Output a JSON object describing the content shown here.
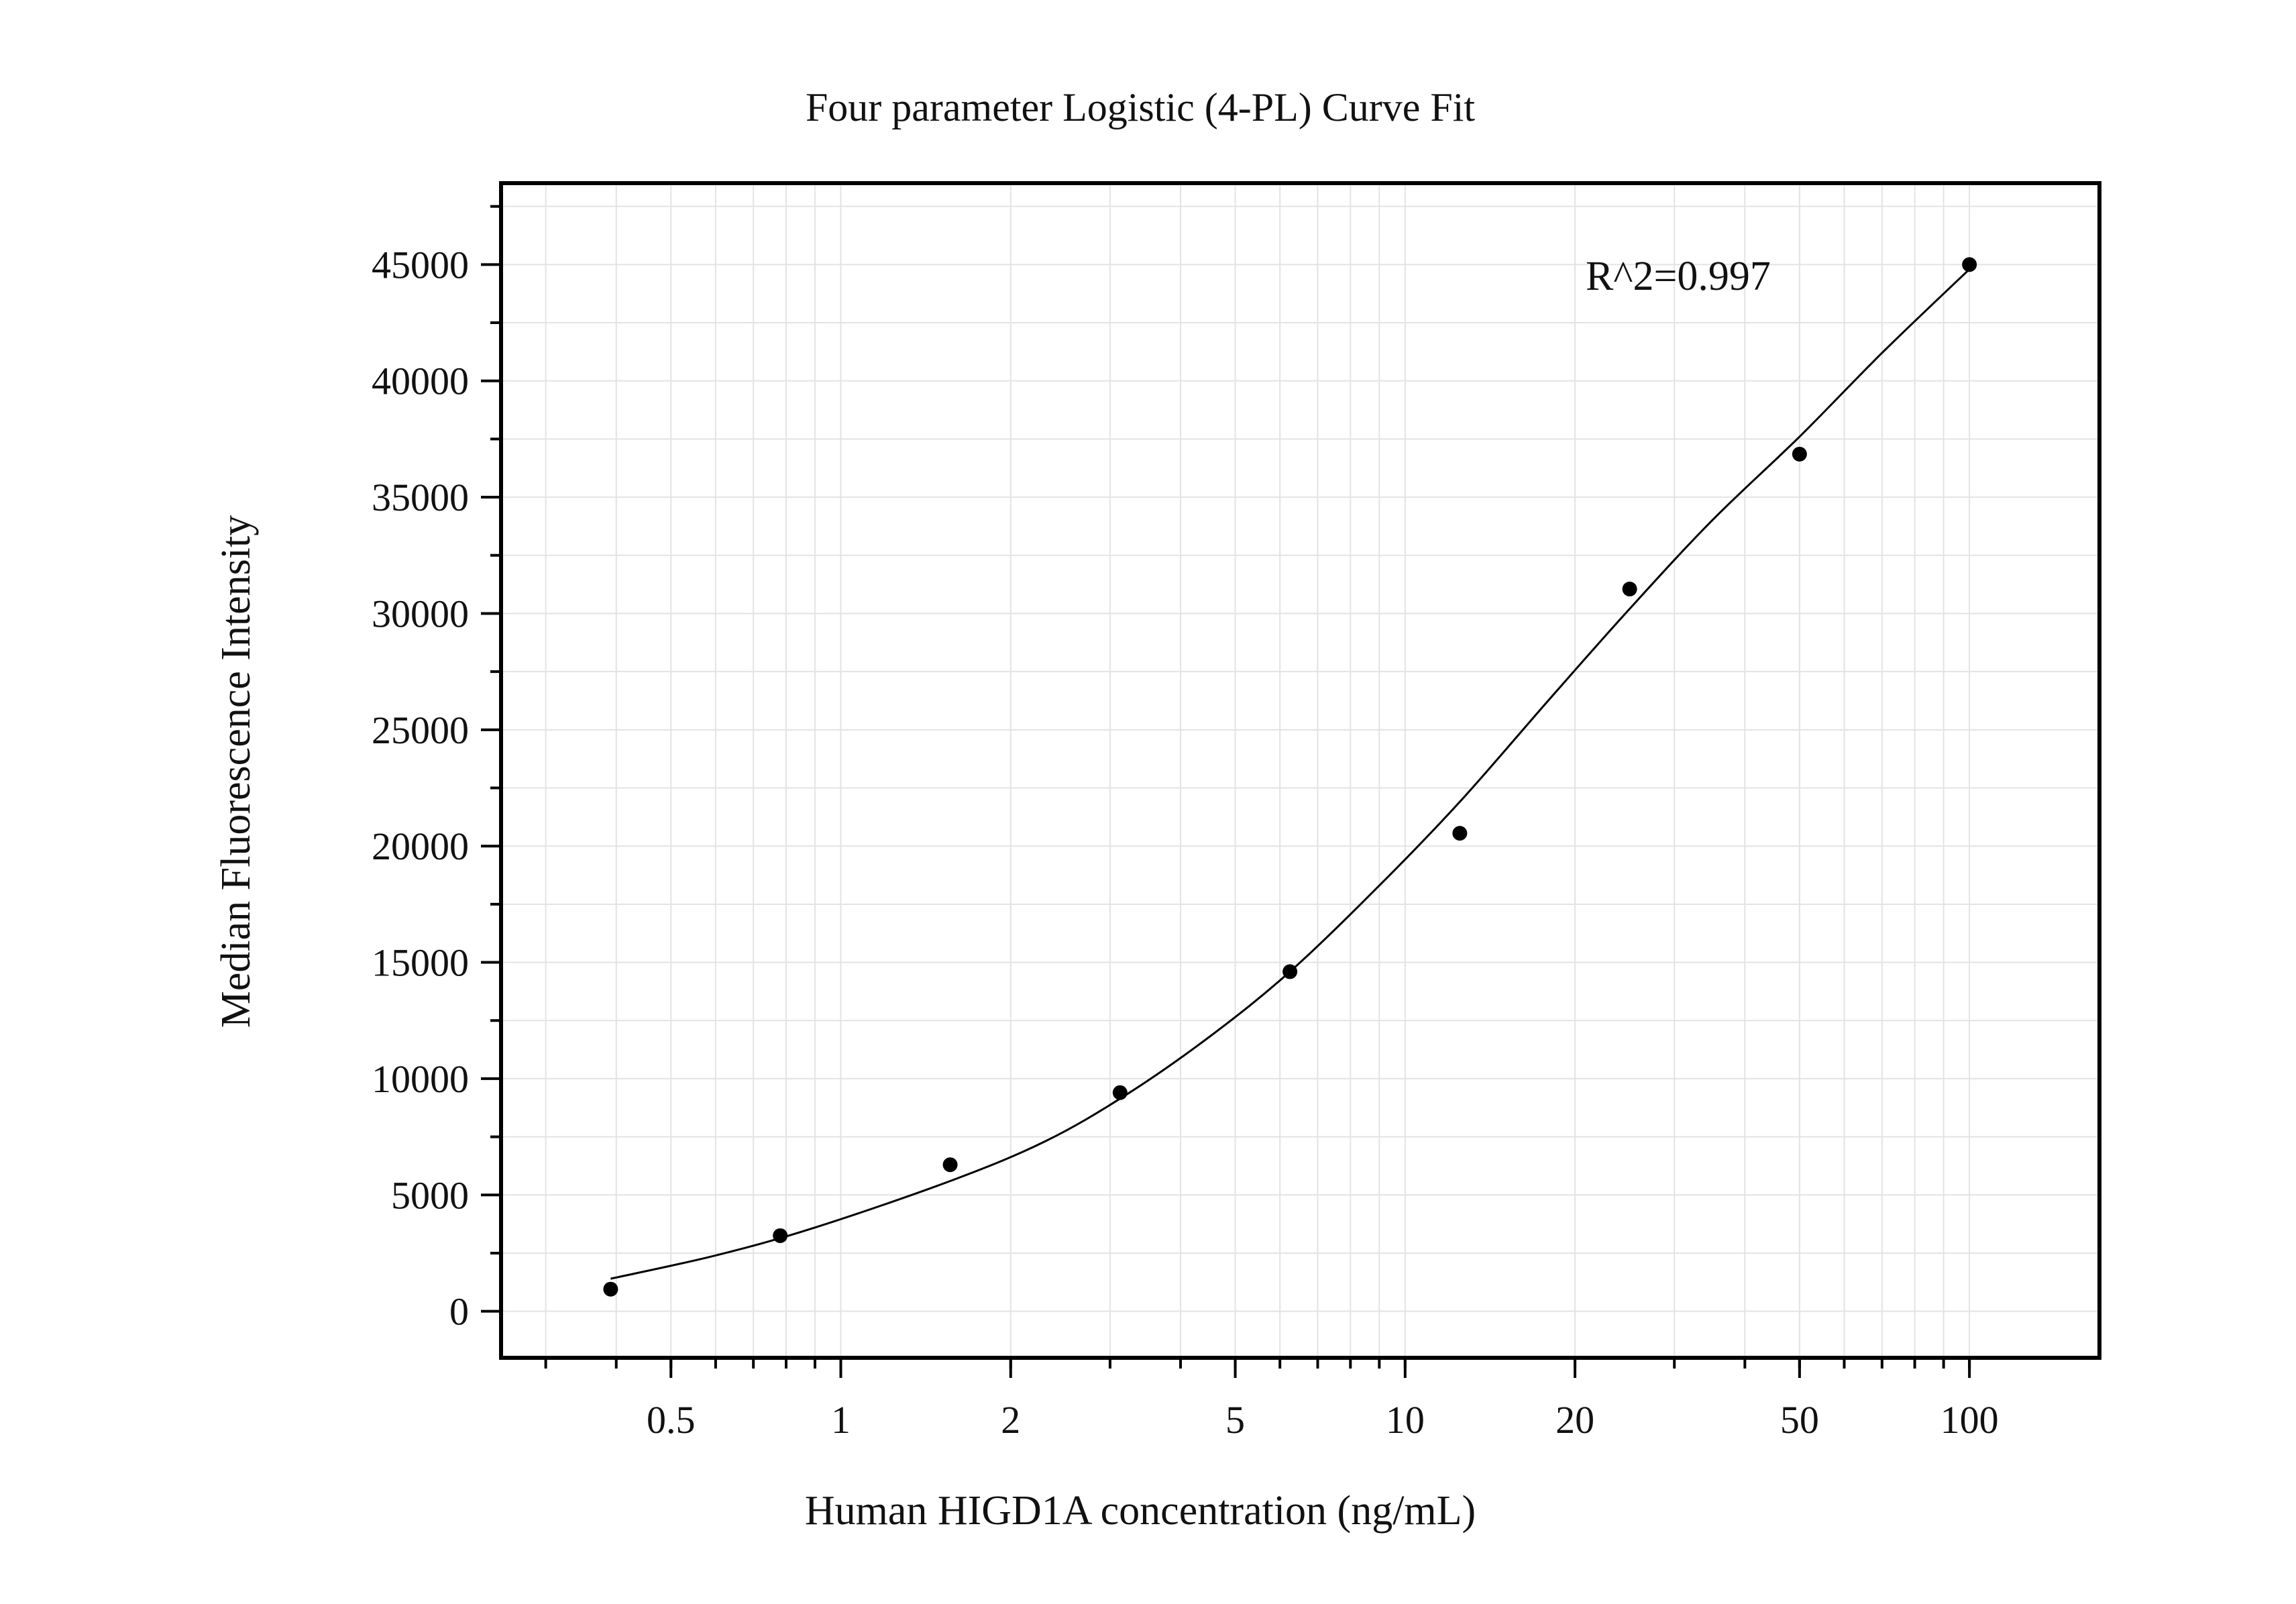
{
  "chart_data": {
    "type": "scatter",
    "title": "Four parameter Logistic (4-PL) Curve Fit",
    "xlabel": "Human HIGD1A concentration (ng/mL)",
    "ylabel": "Median Fluorescence Intensity",
    "x_scale": "log",
    "xlim": [
      0.25,
      170
    ],
    "ylim": [
      -2000,
      48500
    ],
    "x_ticks": [
      0.5,
      1,
      2,
      5,
      10,
      20,
      50,
      100
    ],
    "x_tick_labels": [
      "0.5",
      "1",
      "2",
      "5",
      "10",
      "20",
      "50",
      "100"
    ],
    "y_ticks": [
      0,
      5000,
      10000,
      15000,
      20000,
      25000,
      30000,
      35000,
      40000,
      45000
    ],
    "y_tick_labels": [
      "0",
      "5000",
      "10000",
      "15000",
      "20000",
      "25000",
      "30000",
      "35000",
      "40000",
      "45000"
    ],
    "grid": true,
    "annotation": "R^2=0.997",
    "points": {
      "x": [
        0.391,
        0.781,
        1.5625,
        3.125,
        6.25,
        12.5,
        25,
        50,
        100
      ],
      "y": [
        950,
        3250,
        6300,
        9400,
        14600,
        20550,
        31050,
        36850,
        45000
      ]
    },
    "fit_curve": {
      "x": [
        0.391,
        0.6,
        0.9,
        1.5625,
        2.3,
        3.2,
        4.5,
        6.25,
        9,
        12.5,
        18,
        25,
        35,
        50,
        70,
        100
      ],
      "y": [
        1400,
        2400,
        3600,
        5600,
        7300,
        9300,
        11800,
        14600,
        18300,
        21900,
        26300,
        30200,
        34000,
        37600,
        41200,
        44800
      ]
    },
    "colors": {
      "points": "#000000",
      "curve": "#000000",
      "grid": "#e3e3e3",
      "frame": "#000000"
    }
  }
}
